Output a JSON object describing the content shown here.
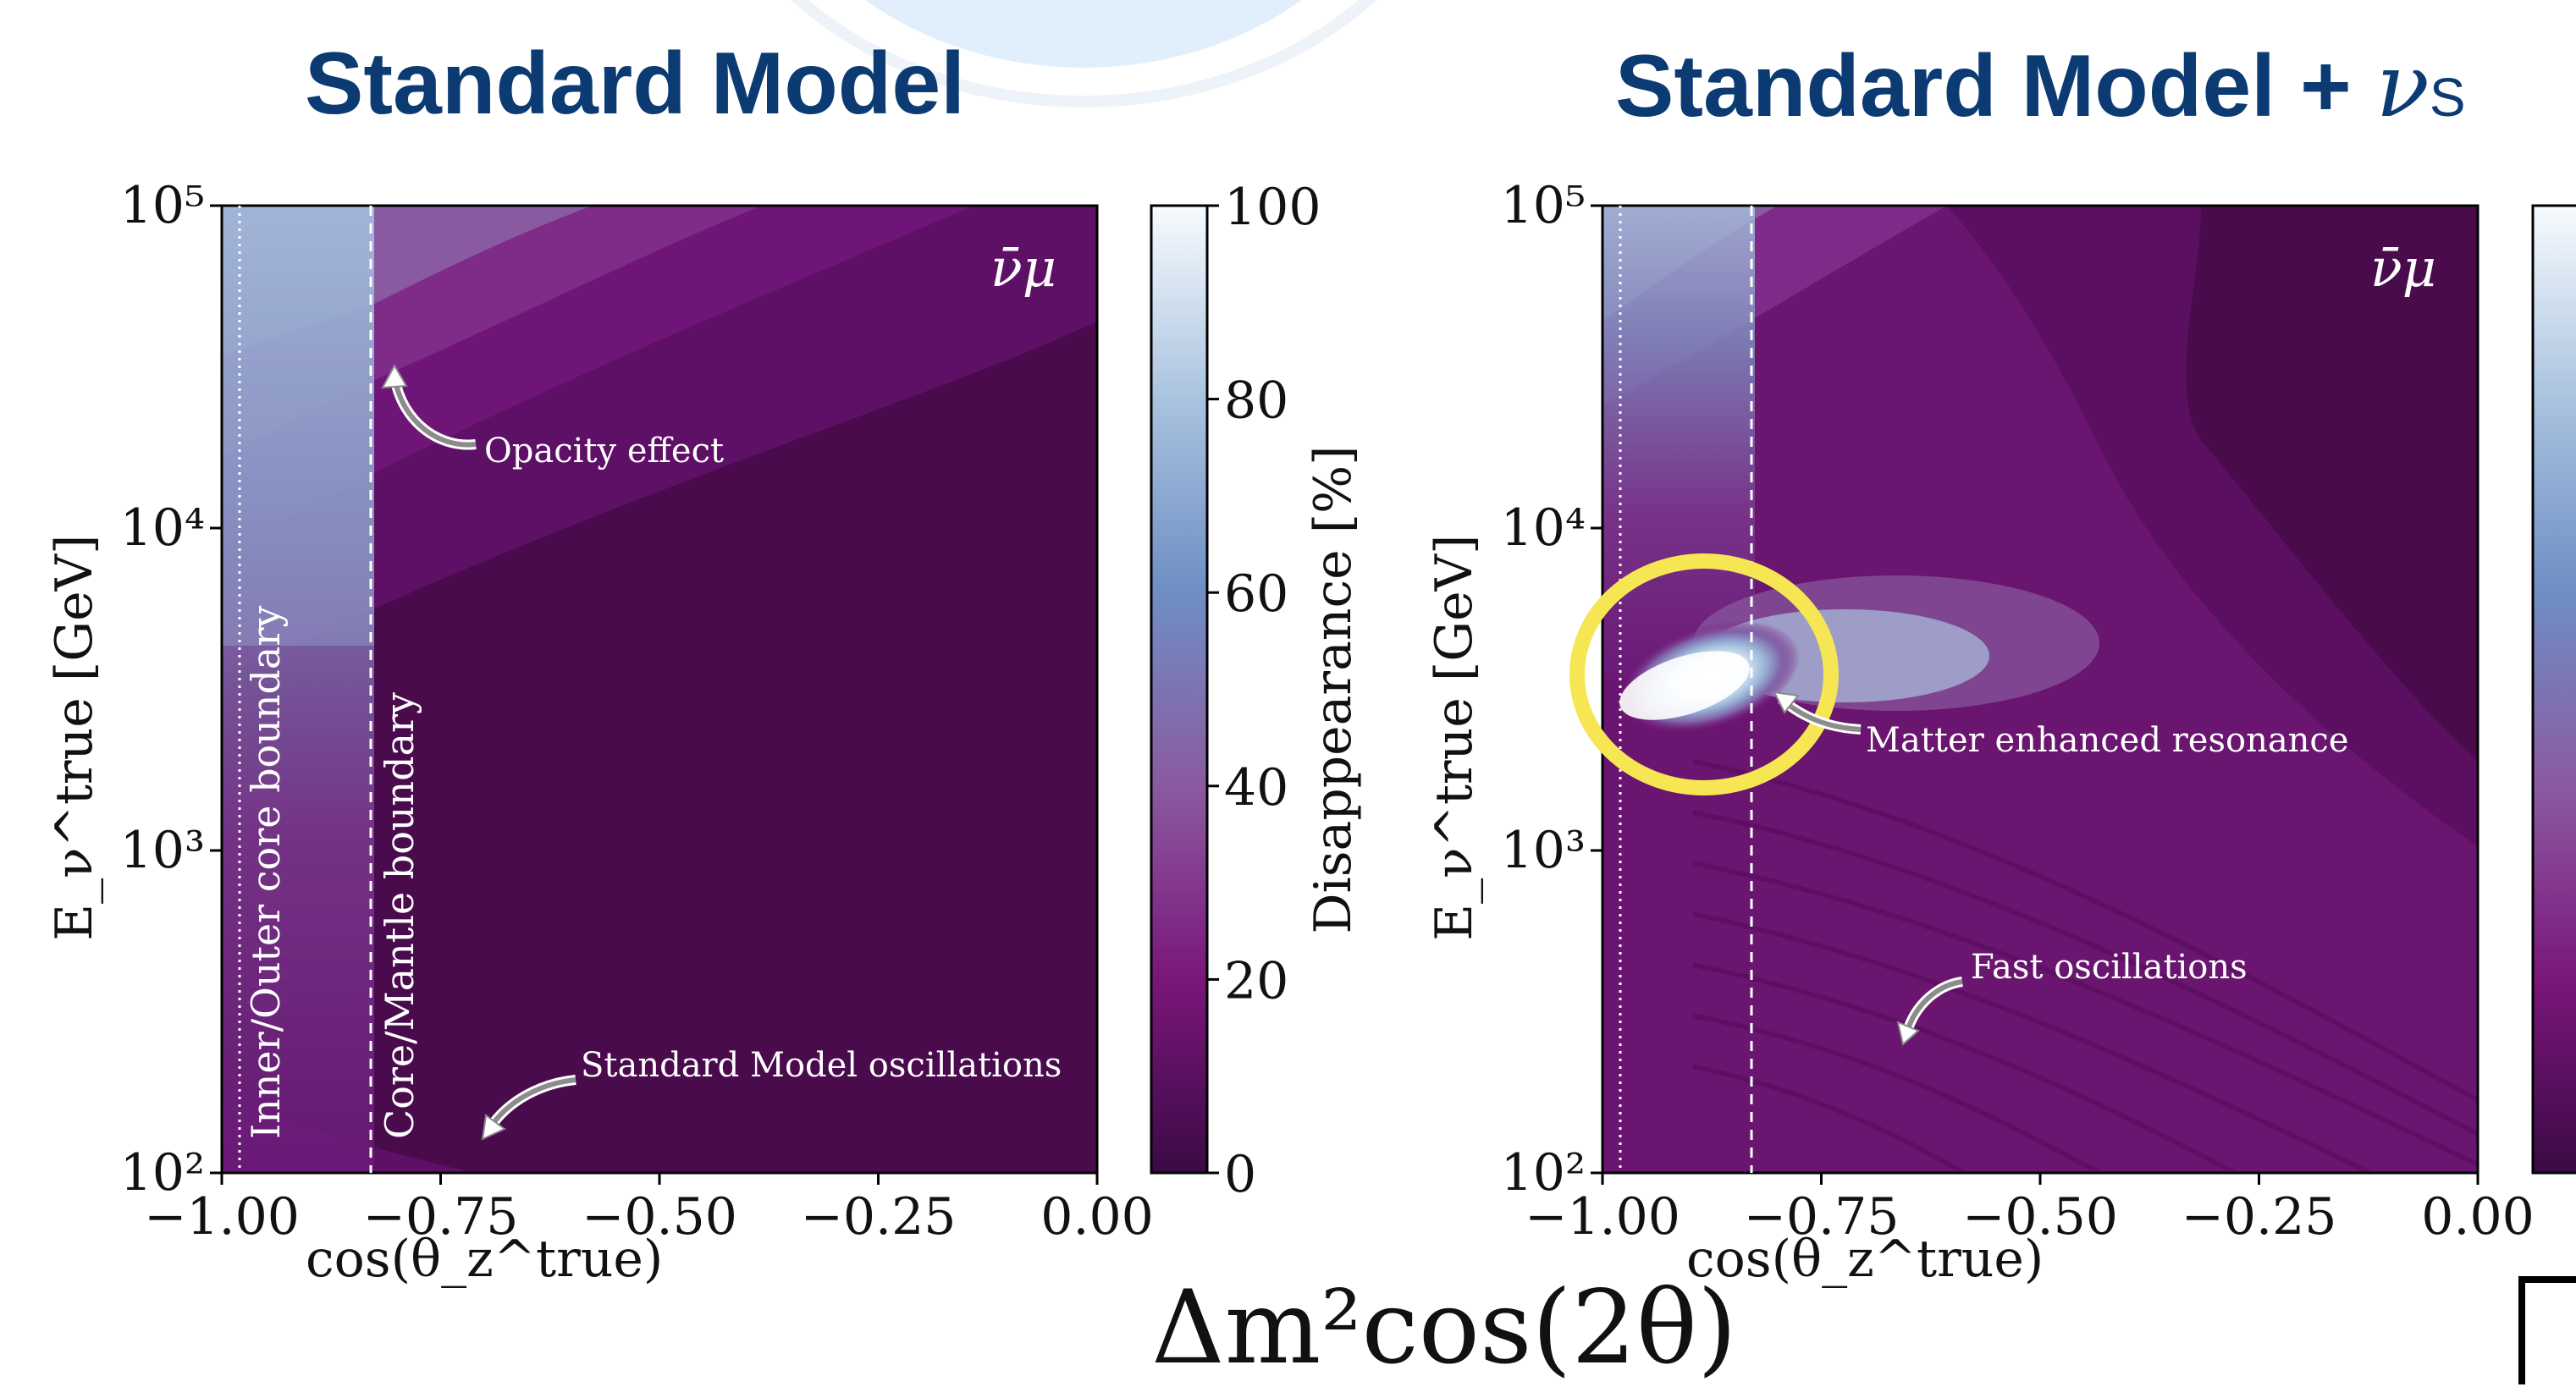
{
  "titles": {
    "left": "Standard Model",
    "right_main": "Standard Model + ",
    "right_nu": "ν",
    "right_sub": "S"
  },
  "formula_fragment": "Δm²cos(2θ)",
  "colors": {
    "title": "#0b3b72",
    "highlight_ring": "#f7e654",
    "background_arc": "#dcebfb"
  },
  "colorbar": {
    "label": "Disappearance [%]",
    "ticks": [
      "0",
      "20",
      "40",
      "60",
      "80",
      "100"
    ],
    "range": [
      0,
      100
    ]
  },
  "chart_data": [
    {
      "type": "heatmap",
      "title": "Standard Model",
      "flavor_label": "ν̄μ",
      "xlabel": "cos(θ_z^true)",
      "ylabel": "E_ν^true [GeV]",
      "xlim": [
        -1.0,
        0.0
      ],
      "ylim": [
        100,
        100000
      ],
      "yscale": "log",
      "x_ticks": [
        "−1.00",
        "−0.75",
        "−0.50",
        "−0.25",
        "0.00"
      ],
      "y_ticks": [
        "10²",
        "10³",
        "10⁴",
        "10⁵"
      ],
      "boundaries": [
        {
          "x": -0.98,
          "style": "dotted",
          "label": "Inner/Outer core boundary"
        },
        {
          "x": -0.83,
          "style": "dashed",
          "label": "Core/Mantle boundary"
        }
      ],
      "annotations": [
        {
          "text": "Opacity effect",
          "x": -0.81,
          "y": 30000
        },
        {
          "text": "Standard Model oscillations",
          "x": -0.7,
          "y": 130
        }
      ]
    },
    {
      "type": "heatmap",
      "title": "Standard Model + νS",
      "flavor_label": "ν̄μ",
      "xlabel": "cos(θ_z^true)",
      "ylabel": "E_ν^true [GeV]",
      "xlim": [
        -1.0,
        0.0
      ],
      "ylim": [
        100,
        100000
      ],
      "yscale": "log",
      "x_ticks": [
        "−1.00",
        "−0.75",
        "−0.50",
        "−0.25",
        "0.00"
      ],
      "y_ticks": [
        "10²",
        "10³",
        "10⁴",
        "10⁵"
      ],
      "boundaries": [
        {
          "x": -0.98,
          "style": "dotted"
        },
        {
          "x": -0.83,
          "style": "dashed"
        }
      ],
      "resonance_peak": {
        "x": -0.93,
        "y": 3500,
        "value": 100
      },
      "annotations": [
        {
          "text": "Matter enhanced resonance",
          "x": -0.8,
          "y": 2800
        },
        {
          "text": "Fast oscillations",
          "x": -0.6,
          "y": 250
        }
      ]
    }
  ]
}
